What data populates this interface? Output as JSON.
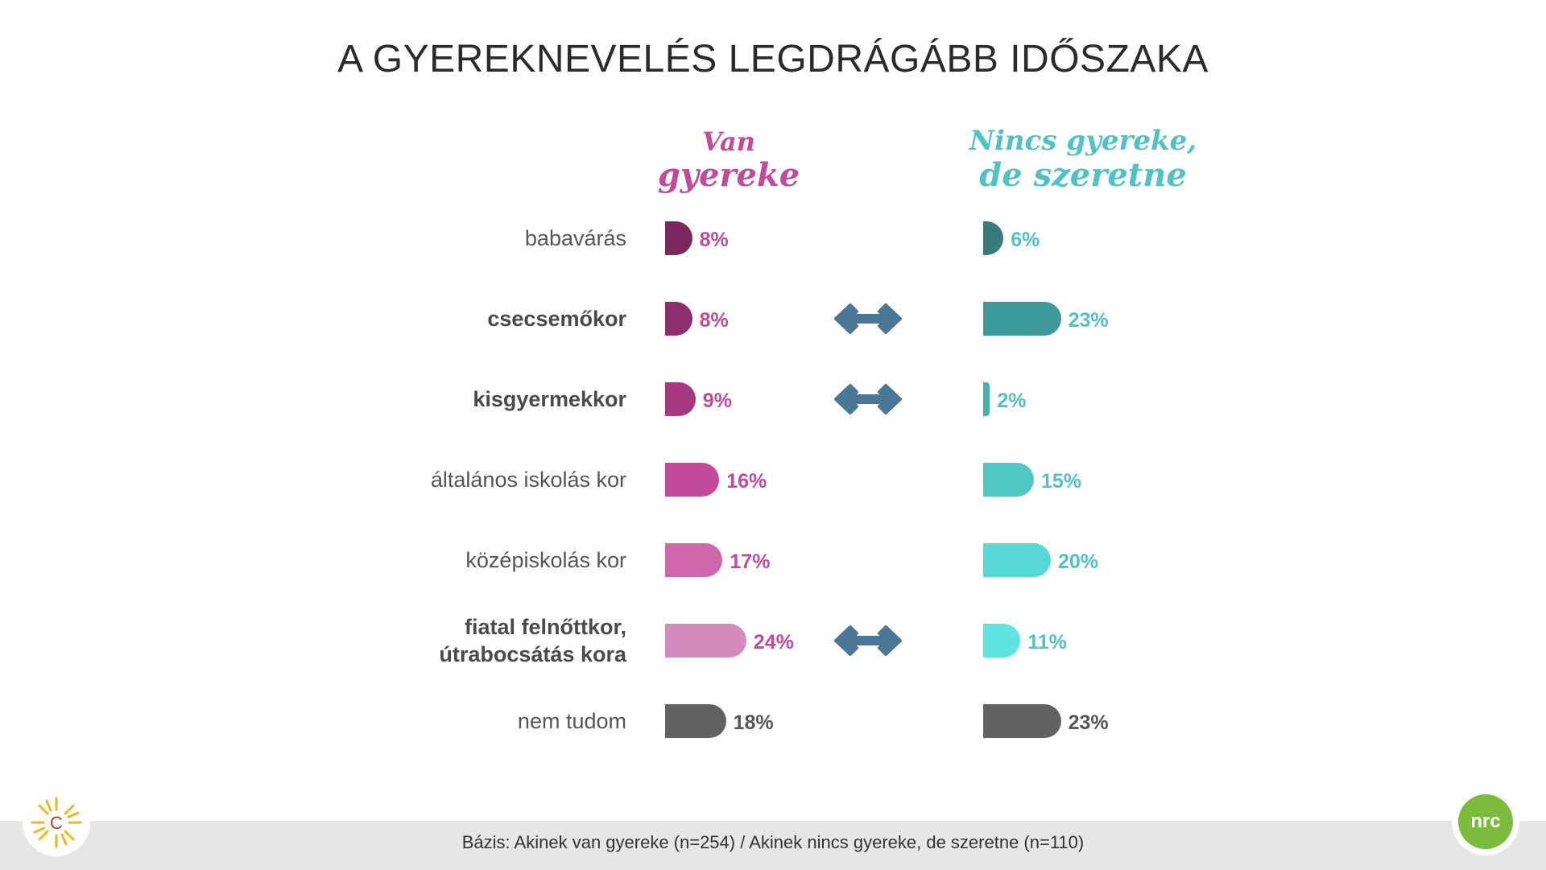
{
  "title": "A GYEREKNEVELÉS LEGDRÁGÁBB IDŐSZAKA",
  "chart_data": {
    "type": "bar",
    "orientation": "horizontal",
    "title": "A GYEREKNEVELÉS LEGDRÁGÁBB IDŐSZAKA",
    "categories": [
      {
        "lines": [
          "babavárás"
        ],
        "bold": false
      },
      {
        "lines": [
          "csecsemőkor"
        ],
        "bold": true
      },
      {
        "lines": [
          "kisgyermekkor"
        ],
        "bold": true
      },
      {
        "lines": [
          "általános iskolás kor"
        ],
        "bold": false
      },
      {
        "lines": [
          "középiskolás kor"
        ],
        "bold": false
      },
      {
        "lines": [
          "fiatal felnőttkor,",
          "útrabocsátás kora"
        ],
        "bold": true
      },
      {
        "lines": [
          "nem tudom"
        ],
        "bold": false
      }
    ],
    "series": [
      {
        "name": "Van gyereke",
        "name_lines": [
          "Van",
          "gyereke"
        ],
        "values": [
          8,
          8,
          9,
          16,
          17,
          24,
          18
        ],
        "labels": [
          "8%",
          "8%",
          "9%",
          "16%",
          "17%",
          "24%",
          "18%"
        ],
        "colors": [
          "#7b2a5e",
          "#8c2f6c",
          "#a8387f",
          "#c14a9a",
          "#cf67ad",
          "#d48cbd",
          "#626262"
        ],
        "label_color": "#c14a9a",
        "last_label_color": "#555555"
      },
      {
        "name": "Nincs gyereke, de szeretne",
        "name_lines": [
          "Nincs gyereke,",
          "de szeretne"
        ],
        "values": [
          6,
          23,
          2,
          15,
          20,
          11,
          23
        ],
        "labels": [
          "6%",
          "23%",
          "2%",
          "15%",
          "20%",
          "11%",
          "23%"
        ],
        "colors": [
          "#377b7b",
          "#3d9a98",
          "#42b0ae",
          "#4fc7c3",
          "#57d8d4",
          "#5fe5e1",
          "#626262"
        ],
        "label_color": "#4fc2c3",
        "last_label_color": "#555555"
      }
    ],
    "arrows_on_rows": [
      1,
      2,
      5
    ],
    "arrow_color": "#4a7796",
    "legend": "none",
    "grid": false
  },
  "footer": {
    "text": "Bázis: Akinek van gyereke (n=254) / Akinek nincs gyereke, de szeretne (n=110)"
  },
  "logos": {
    "left": {
      "letter": "C",
      "icon": "sun-icon"
    },
    "right": {
      "text": "nrc",
      "icon": "nrc-logo-icon",
      "color": "#7dbb3d"
    }
  }
}
